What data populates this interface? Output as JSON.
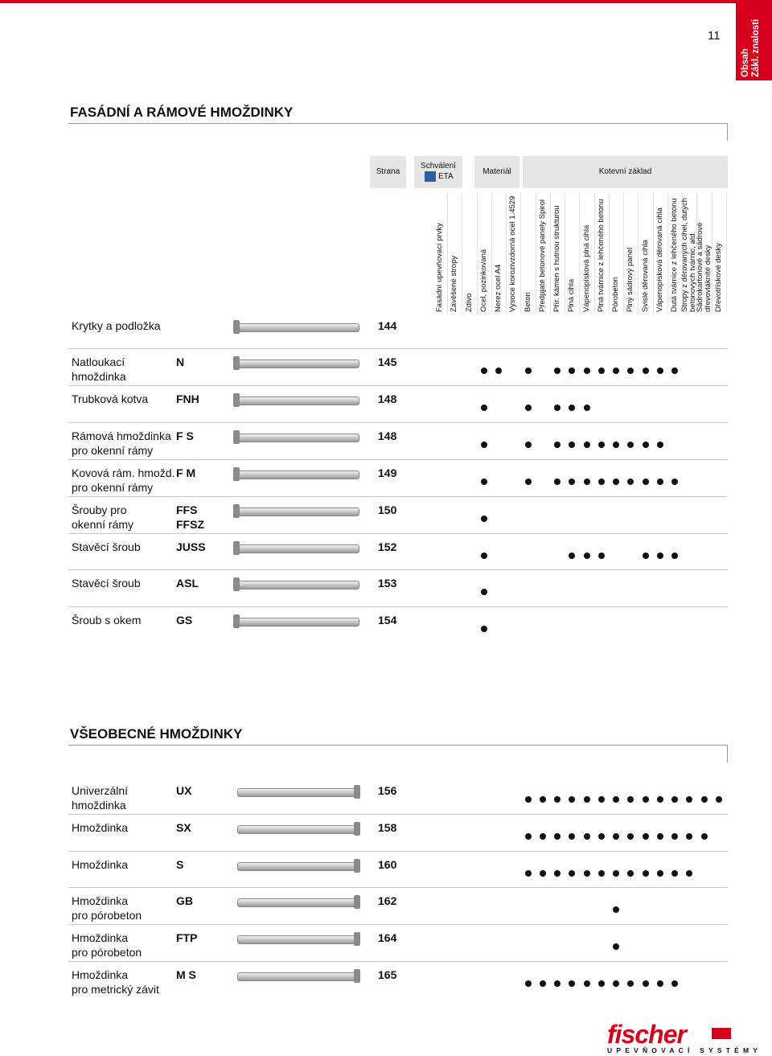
{
  "page_number": "11",
  "side_tab": [
    "Obsah",
    "Zákl. znalosti"
  ],
  "header": {
    "strana": "Strana",
    "schvaleni": "Schválení",
    "eta": "ETA",
    "material": "Materiál",
    "kotevni": "Kotevní základ"
  },
  "columns": [
    [
      "Fasádní upevňovací prvky"
    ],
    [
      "Zavěšené stropy"
    ],
    [
      "Zdivo"
    ],
    [
      "Ocel, pozinkovaná"
    ],
    [
      "Nerez ocel A4"
    ],
    [
      "Vysoce korozivzdorná ocel 1.4529"
    ],
    [
      "Beton"
    ],
    [
      "Předpjaté betonové panely Spirol"
    ],
    [
      "Přír. kámen s hutnou strukturou"
    ],
    [
      "Plná cihla"
    ],
    [
      "Vápenopísková plná cihla"
    ],
    [
      "Plná tvárnice z lehčeného betonu"
    ],
    [
      "Pórobeton"
    ],
    [
      "Plný sádrový panel"
    ],
    [
      "Svislé děrovaná cihla"
    ],
    [
      "Vápenopísková děrovaná cihla"
    ],
    [
      "Dutá tvárnice z lehčeného betonu"
    ],
    [
      "Stropy z děrovaných cihel, dutých",
      "betonových tvárnic, atd."
    ],
    [
      "Sádrokartonové a sádrové",
      "dřevovláknité desky"
    ],
    [
      "Dřevotřískové desky"
    ]
  ],
  "sections": [
    {
      "title": "FASÁDNÍ A RÁMOVÉ HMOŽDINKY",
      "rows": [
        {
          "name": [
            "Krytky a podložka"
          ],
          "page": 144,
          "dots": [
            false,
            false,
            false,
            false,
            false,
            false,
            false,
            false,
            false,
            false,
            false,
            false,
            false,
            false,
            false,
            false,
            false,
            false,
            false,
            false
          ]
        },
        {
          "name": [
            "Natloukací",
            "hmoždinka"
          ],
          "code": [
            "N"
          ],
          "page": 145,
          "dots": [
            false,
            false,
            false,
            true,
            true,
            false,
            true,
            false,
            true,
            true,
            true,
            true,
            true,
            true,
            true,
            true,
            true,
            false,
            false,
            false
          ]
        },
        {
          "name": [
            "Trubková kotva"
          ],
          "code": [
            "FNH"
          ],
          "page": 148,
          "dots": [
            false,
            false,
            false,
            true,
            false,
            false,
            true,
            false,
            true,
            true,
            true,
            false,
            false,
            false,
            false,
            false,
            false,
            false,
            false,
            false
          ]
        },
        {
          "name": [
            "Rámová hmoždinka",
            "pro okenní rámy"
          ],
          "code": [
            "F S"
          ],
          "page": 148,
          "dots": [
            false,
            false,
            false,
            true,
            false,
            false,
            true,
            false,
            true,
            true,
            true,
            true,
            true,
            true,
            true,
            true,
            false,
            false,
            false,
            false
          ]
        },
        {
          "name": [
            "Kovová rám. hmožd.",
            "pro okenní rámy"
          ],
          "code": [
            "F M"
          ],
          "page": 149,
          "dots": [
            false,
            false,
            false,
            true,
            false,
            false,
            true,
            false,
            true,
            true,
            true,
            true,
            true,
            true,
            true,
            true,
            true,
            false,
            false,
            false
          ]
        },
        {
          "name": [
            "Šrouby pro",
            "okenní rámy"
          ],
          "code": [
            "FFS",
            "FFSZ"
          ],
          "page": 150,
          "dots": [
            false,
            false,
            false,
            true,
            false,
            false,
            false,
            false,
            false,
            false,
            false,
            false,
            false,
            false,
            false,
            false,
            false,
            false,
            false,
            false
          ]
        },
        {
          "name": [
            "Stavěcí šroub"
          ],
          "code": [
            "JUSS"
          ],
          "page": 152,
          "dots": [
            false,
            false,
            false,
            true,
            false,
            false,
            false,
            false,
            false,
            true,
            true,
            true,
            false,
            false,
            true,
            true,
            true,
            false,
            false,
            false
          ]
        },
        {
          "name": [
            "Stavěcí šroub"
          ],
          "code": [
            "ASL"
          ],
          "page": 153,
          "dots": [
            false,
            false,
            false,
            true,
            false,
            false,
            false,
            false,
            false,
            false,
            false,
            false,
            false,
            false,
            false,
            false,
            false,
            false,
            false,
            false
          ]
        },
        {
          "name": [
            "Šroub s okem"
          ],
          "code": [
            "GS"
          ],
          "page": 154,
          "dots": [
            false,
            false,
            false,
            true,
            false,
            false,
            false,
            false,
            false,
            false,
            false,
            false,
            false,
            false,
            false,
            false,
            false,
            false,
            false,
            false
          ]
        }
      ]
    },
    {
      "title": "VŠEOBECNÉ HMOŽDINKY",
      "rows": [
        {
          "name": [
            "Univerzální",
            "hmoždinka"
          ],
          "code": [
            "UX"
          ],
          "page": 156,
          "dots": [
            false,
            false,
            false,
            false,
            false,
            false,
            true,
            true,
            true,
            true,
            true,
            true,
            true,
            true,
            true,
            true,
            true,
            true,
            true,
            true
          ]
        },
        {
          "name": [
            "Hmoždinka"
          ],
          "code": [
            "SX"
          ],
          "page": 158,
          "dots": [
            false,
            false,
            false,
            false,
            false,
            false,
            true,
            true,
            true,
            true,
            true,
            true,
            true,
            true,
            true,
            true,
            true,
            true,
            true,
            false
          ]
        },
        {
          "name": [
            "Hmoždinka"
          ],
          "code": [
            "S"
          ],
          "page": 160,
          "dots": [
            false,
            false,
            false,
            false,
            false,
            false,
            true,
            true,
            true,
            true,
            true,
            true,
            true,
            true,
            true,
            true,
            true,
            true,
            false,
            false
          ]
        },
        {
          "name": [
            "Hmoždinka",
            "pro pórobeton"
          ],
          "code": [
            "GB"
          ],
          "page": 162,
          "dots": [
            false,
            false,
            false,
            false,
            false,
            false,
            false,
            false,
            false,
            false,
            false,
            false,
            true,
            false,
            false,
            false,
            false,
            false,
            false,
            false
          ]
        },
        {
          "name": [
            "Hmoždinka",
            "pro pórobeton"
          ],
          "code": [
            "FTP"
          ],
          "page": 164,
          "dots": [
            false,
            false,
            false,
            false,
            false,
            false,
            false,
            false,
            false,
            false,
            false,
            false,
            true,
            false,
            false,
            false,
            false,
            false,
            false,
            false
          ]
        },
        {
          "name": [
            "Hmoždinka",
            "pro metrický závit"
          ],
          "code": [
            "M S"
          ],
          "page": 165,
          "dots": [
            false,
            false,
            false,
            false,
            false,
            false,
            true,
            true,
            true,
            true,
            true,
            true,
            true,
            true,
            true,
            true,
            true,
            false,
            false,
            false
          ]
        }
      ]
    }
  ],
  "logo": {
    "name": "fischer",
    "tagline": "UPEVŇOVACÍ SYSTÉMY"
  }
}
